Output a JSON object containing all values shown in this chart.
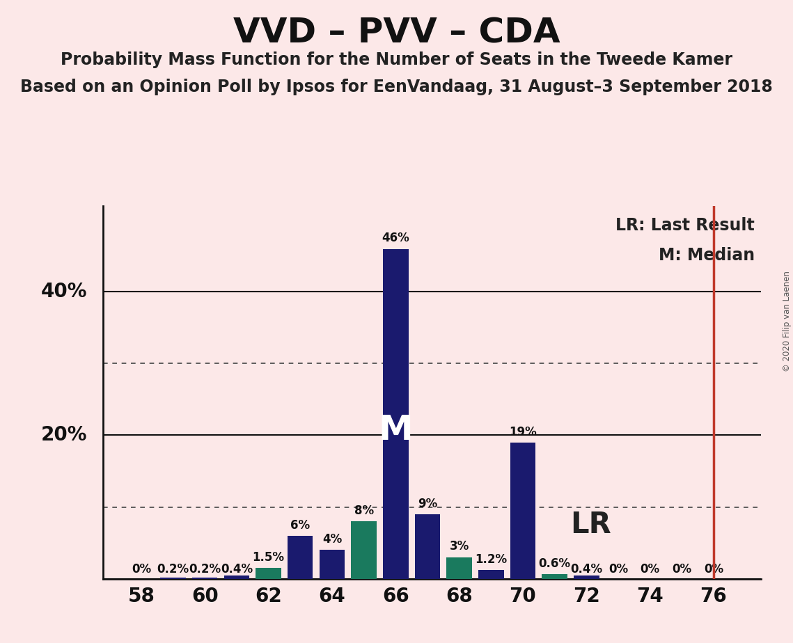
{
  "title": "VVD – PVV – CDA",
  "subtitle1": "Probability Mass Function for the Number of Seats in the Tweede Kamer",
  "subtitle2": "Based on an Opinion Poll by Ipsos for EenVandaag, 31 August–3 September 2018",
  "copyright": "© 2020 Filip van Laenen",
  "background_color": "#fce8e8",
  "bar_navy": "#1a1a6e",
  "bar_teal": "#1a7a5e",
  "lr_line_color": "#c0392b",
  "seats": [
    58,
    59,
    60,
    61,
    62,
    63,
    64,
    65,
    66,
    67,
    68,
    69,
    70,
    71,
    72,
    73,
    74,
    75,
    76
  ],
  "values": [
    0.0,
    0.2,
    0.2,
    0.4,
    1.5,
    6.0,
    4.0,
    8.0,
    46.0,
    9.0,
    3.0,
    1.2,
    19.0,
    0.6,
    0.4,
    0.0,
    0.0,
    0.0,
    0.0
  ],
  "teal_seats": [
    62,
    65,
    68,
    71
  ],
  "median_seat": 66,
  "lr_seat": 76,
  "ylim": [
    0,
    52
  ],
  "solid_yticks": [
    0,
    20,
    40
  ],
  "dotted_yticks": [
    10,
    30
  ],
  "xtick_positions": [
    58,
    60,
    62,
    64,
    66,
    68,
    70,
    72,
    74,
    76
  ],
  "xtick_labels": [
    "58",
    "60",
    "62",
    "64",
    "66",
    "68",
    "70",
    "72",
    "74",
    "76"
  ],
  "bar_labels": {
    "58": "0%",
    "59": "0.2%",
    "60": "0.2%",
    "61": "0.4%",
    "62": "1.5%",
    "63": "6%",
    "64": "4%",
    "65": "8%",
    "66": "46%",
    "67": "9%",
    "68": "3%",
    "69": "1.2%",
    "70": "19%",
    "71": "0.6%",
    "72": "0.4%",
    "73": "0%",
    "74": "0%",
    "75": "0%",
    "76": "0%"
  },
  "bar_width": 0.8,
  "label_fontsize": 12,
  "axis_label_fontsize": 20,
  "tick_fontsize": 20,
  "title_fontsize": 36,
  "subtitle1_fontsize": 17,
  "subtitle2_fontsize": 17,
  "legend_fontsize": 17,
  "median_fontsize": 36,
  "lr_fontsize": 30
}
